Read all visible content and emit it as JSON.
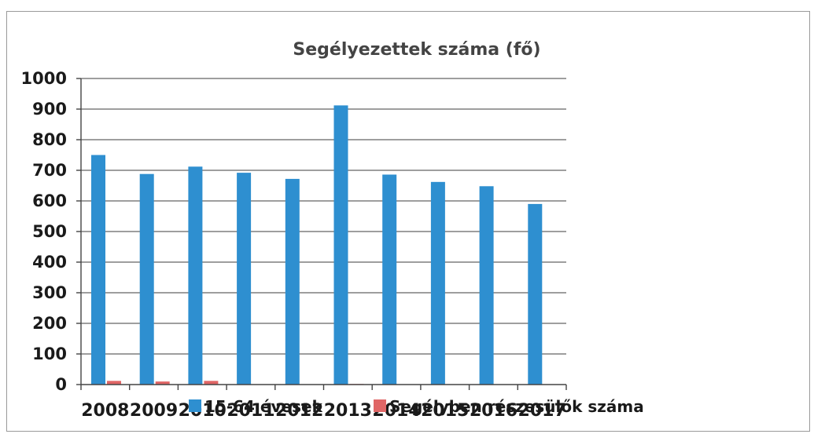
{
  "chart_data": {
    "type": "bar",
    "title": "Segélyezettek száma (fő)",
    "xlabel": "",
    "ylabel": "",
    "ylim": [
      0,
      1000
    ],
    "yticks": [
      0,
      100,
      200,
      300,
      400,
      500,
      600,
      700,
      800,
      900,
      1000
    ],
    "categories": [
      "2008",
      "2009",
      "2010",
      "2011",
      "2012",
      "2013",
      "2014",
      "2015",
      "2016",
      "2017"
    ],
    "series": [
      {
        "name": "15-64 évesek",
        "color": "#2e8fd0",
        "values": [
          750,
          688,
          712,
          692,
          672,
          912,
          686,
          662,
          648,
          590
        ]
      },
      {
        "name": "Segélyben részesülők száma",
        "color": "#e06666",
        "values": [
          12,
          10,
          12,
          0,
          0,
          2,
          0,
          0,
          0,
          0
        ]
      }
    ],
    "grid": true,
    "legend_position": "bottom"
  }
}
